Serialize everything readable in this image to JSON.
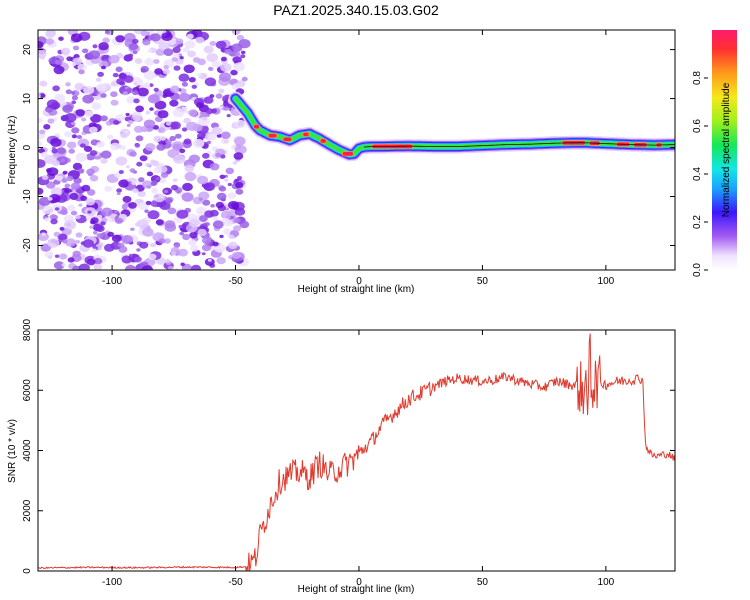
{
  "title": "PAZ1.2025.340.15.03.G02",
  "colors": {
    "snr_line": "#e03a2e",
    "ridge_core": "#ff1a4f",
    "noise_scatter": "#8a2be2"
  },
  "chart_data": [
    {
      "id": "spectrogram",
      "type": "heatmap",
      "title": "PAZ1.2025.340.15.03.G02",
      "xlabel": "Height of straight line (km)",
      "ylabel": "Frequency (Hz)",
      "xlim": [
        -130,
        128
      ],
      "ylim": [
        -25,
        24
      ],
      "x_ticks": [
        "-100",
        "-50",
        "0",
        "50",
        "100"
      ],
      "x_tick_values": [
        -100,
        -50,
        0,
        50,
        100
      ],
      "y_ticks": [
        "20",
        "10",
        "0",
        "-10",
        "-20"
      ],
      "y_tick_values": [
        20,
        10,
        0,
        -10,
        -20
      ],
      "noise_region_x": [
        -130,
        -46
      ],
      "ridge": {
        "x": [
          -50,
          -45,
          -42,
          -40,
          -36,
          -32,
          -28,
          -24,
          -20,
          -16,
          -12,
          -8,
          -4,
          -2,
          0,
          2,
          5,
          10,
          20,
          30,
          40,
          50,
          60,
          70,
          80,
          90,
          100,
          110,
          120,
          128
        ],
        "y": [
          10,
          7,
          4.5,
          3.5,
          2.5,
          2.2,
          1.5,
          2.5,
          2.8,
          1.8,
          0.6,
          -0.5,
          -1.4,
          -1.3,
          -0.2,
          0.1,
          0.2,
          0.2,
          0.3,
          0.2,
          0.2,
          0.4,
          0.6,
          0.7,
          0.9,
          1.0,
          0.8,
          0.6,
          0.5,
          0.6
        ]
      },
      "colorbar": {
        "label": "Normalized spectral amplitude",
        "range": [
          0.0,
          1.0
        ],
        "ticks": [
          "0.0",
          "0.2",
          "0.4",
          "0.6",
          "0.8"
        ],
        "tick_values": [
          0.0,
          0.2,
          0.4,
          0.6,
          0.8
        ]
      }
    },
    {
      "id": "snr",
      "type": "line",
      "xlabel": "Height of straight line (km)",
      "ylabel": "SNR (10 * v/v)",
      "xlim": [
        -130,
        128
      ],
      "ylim": [
        0,
        8000
      ],
      "x_ticks": [
        "-100",
        "-50",
        "0",
        "50",
        "100"
      ],
      "x_tick_values": [
        -100,
        -50,
        0,
        50,
        100
      ],
      "y_ticks": [
        "0",
        "2000",
        "4000",
        "6000",
        "8000"
      ],
      "y_tick_values": [
        0,
        2000,
        4000,
        6000,
        8000
      ],
      "series": [
        {
          "name": "SNR",
          "x": [
            -130,
            -110,
            -90,
            -70,
            -50,
            -45,
            -42,
            -40,
            -36,
            -32,
            -28,
            -24,
            -20,
            -16,
            -12,
            -8,
            -4,
            0,
            5,
            10,
            15,
            20,
            25,
            30,
            35,
            40,
            45,
            50,
            55,
            60,
            65,
            70,
            75,
            80,
            85,
            90,
            92,
            94,
            96,
            100,
            105,
            110,
            114,
            115,
            116,
            118,
            120,
            125,
            128
          ],
          "values": [
            100,
            120,
            110,
            130,
            120,
            150,
            400,
            1200,
            2200,
            3000,
            3200,
            3300,
            3100,
            3600,
            3200,
            3400,
            3600,
            3900,
            4300,
            4900,
            5300,
            5700,
            5900,
            6100,
            6300,
            6400,
            6350,
            6300,
            6350,
            6450,
            6300,
            6200,
            6100,
            6300,
            6200,
            6100,
            5800,
            6200,
            6300,
            6200,
            6300,
            6350,
            6400,
            6300,
            4200,
            3900,
            3800,
            3900,
            3700
          ]
        }
      ]
    }
  ]
}
